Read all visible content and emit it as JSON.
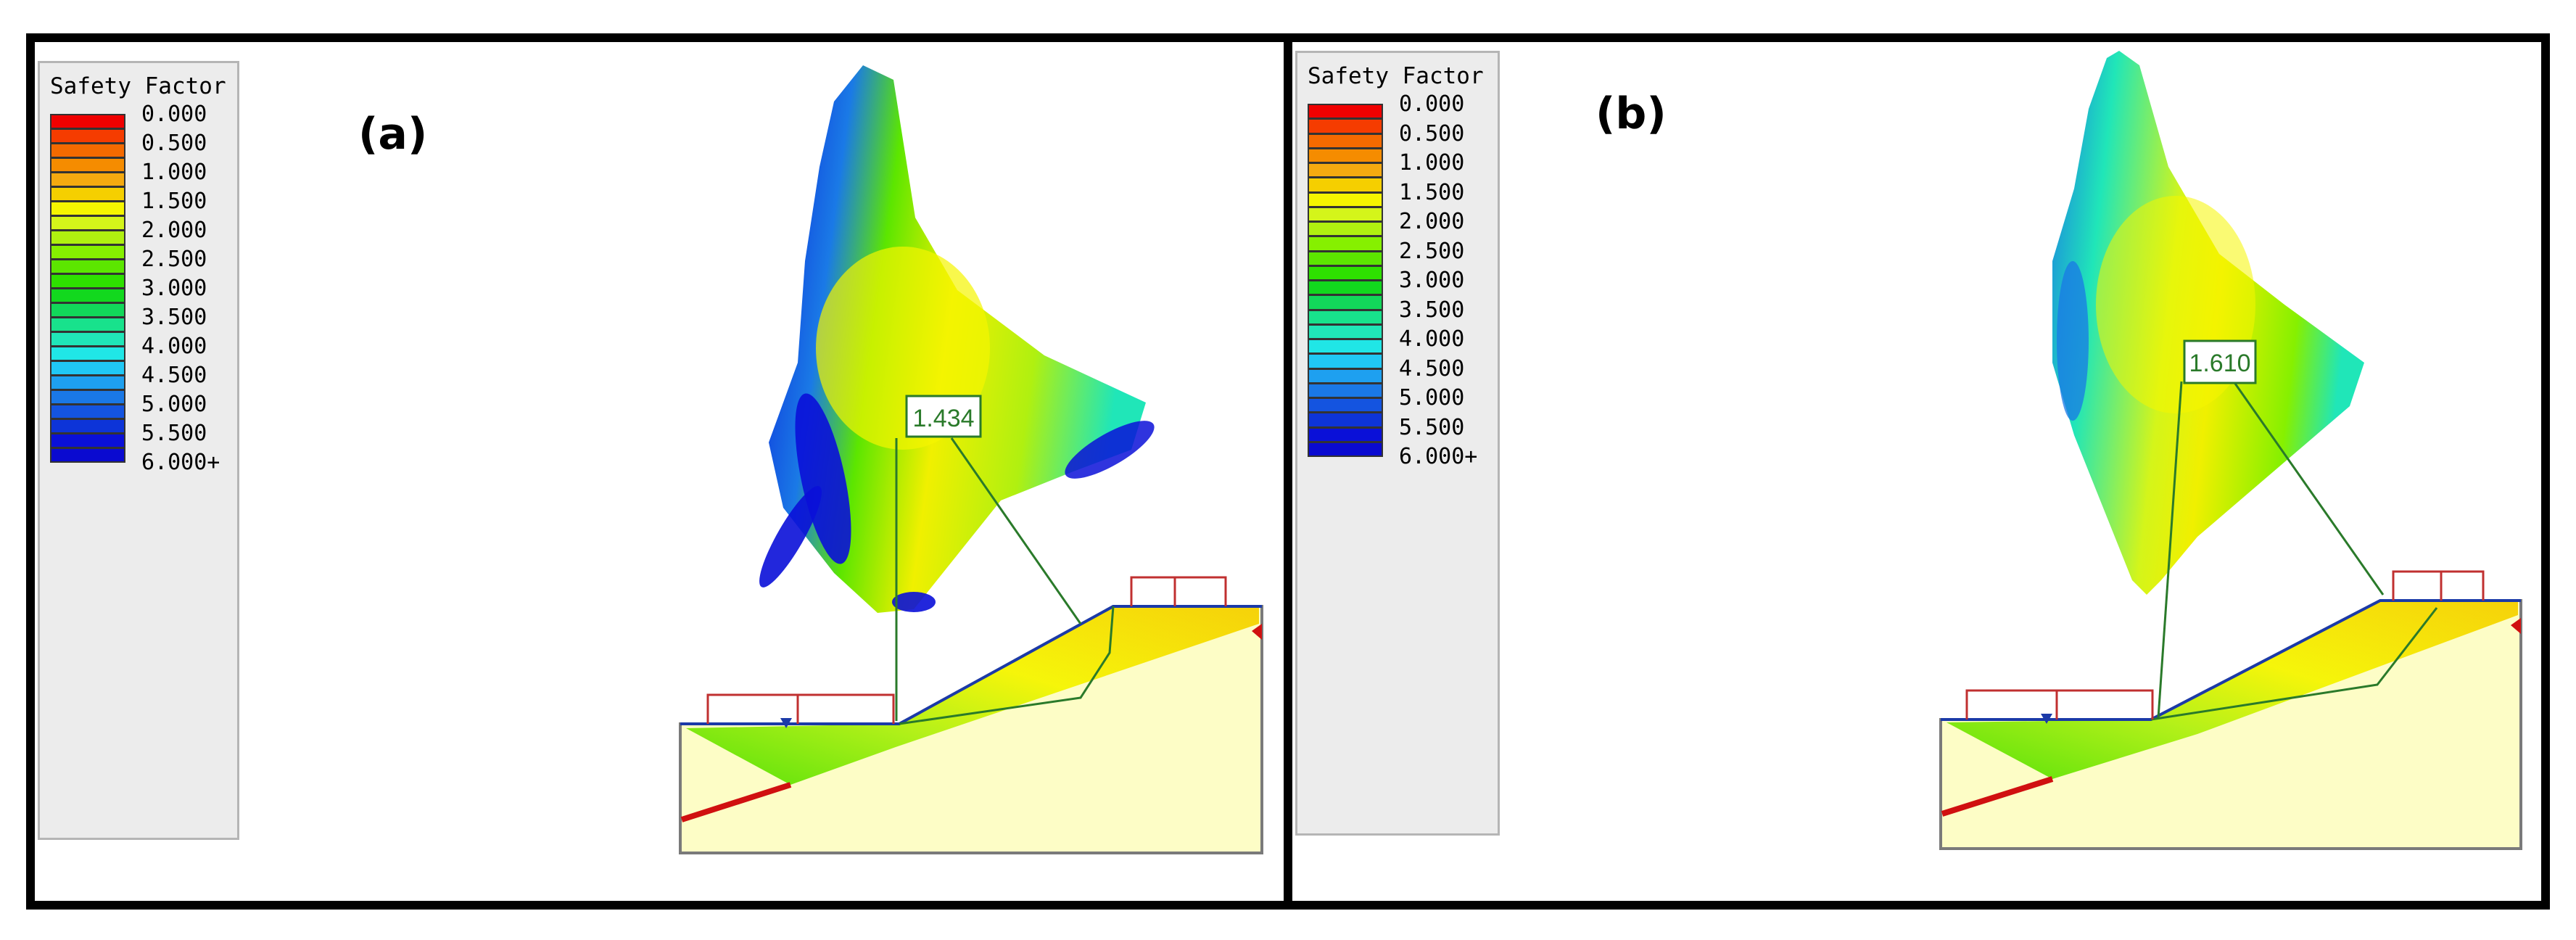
{
  "legend": {
    "title": "Safety Factor",
    "ticks": [
      "0.000",
      "0.500",
      "1.000",
      "1.500",
      "2.000",
      "2.500",
      "3.000",
      "3.500",
      "4.000",
      "4.500",
      "5.000",
      "5.500",
      "6.000+"
    ],
    "colors": [
      "#f00000",
      "#f53c00",
      "#f56a00",
      "#f58c00",
      "#f5aa10",
      "#f5cf00",
      "#f5f500",
      "#d4f51a",
      "#b0f010",
      "#86f000",
      "#5ce600",
      "#2ee000",
      "#12d81e",
      "#12d85a",
      "#18e28c",
      "#20e6b8",
      "#20e6e6",
      "#20c8f5",
      "#1ea0f0",
      "#1a78e6",
      "#1454e0",
      "#0d34d8",
      "#0a10d8",
      "#0a0ad0"
    ]
  },
  "panels": [
    {
      "label": "(a)",
      "fs_value": "1.434"
    },
    {
      "label": "(b)",
      "fs_value": "1.610"
    }
  ],
  "colors": {
    "frame": "#000000",
    "soil_fill": "#fdfdc6",
    "soil_edge": "#7a7a7a",
    "fs_line": "#2a7a2a",
    "load_box": "#c03030",
    "water": "#1b3aa8",
    "slip_line": "#d01010"
  }
}
